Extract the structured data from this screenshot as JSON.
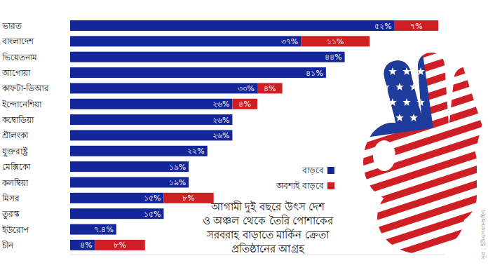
{
  "chart_data": {
    "type": "bar",
    "orientation": "horizontal",
    "stacked": true,
    "data_labels": true,
    "tick_labels": "y",
    "grid": false,
    "legend": "right",
    "title": "আগামী দুই বছরে উৎস দেশ\nও অঞ্চল থেকে তৈরি পোশাকের\nসরবরাহ বাড়াতে মার্কিন ক্রেতা\nপ্রতিষ্ঠানের আগ্রহ",
    "annotations": [
      "সূত্র : ইউএসএফআইএ"
    ],
    "categories": [
      "ভারত",
      "বাংলাদেশ",
      "ভিয়েতনাম",
      "আগোয়া",
      "কাফটা-ডিআর",
      "ইন্দোনেশিয়া",
      "কম্বোডিয়া",
      "শ্রীলংকা",
      "যুক্তরাষ্ট্র",
      "মেক্সিকো",
      "কলম্বিয়া",
      "মিসর",
      "তুরস্ক",
      "ইউরোপ",
      "চীন"
    ],
    "xlim": [
      0,
      60
    ],
    "series": [
      {
        "name": "বাড়বে",
        "color": "#14279a",
        "values": [
          52,
          37,
          44,
          41,
          30,
          26,
          26,
          26,
          22,
          19,
          19,
          15,
          15,
          7.4,
          4
        ],
        "value_labels": [
          "৫২%",
          "৩৭%",
          "৪৪%",
          "৪১%",
          "৩০%",
          "২৬%",
          "২৬%",
          "২৬%",
          "২২%",
          "১৯%",
          "১৯%",
          "১৫%",
          "১৫%",
          "৭.৪%",
          "৪%"
        ]
      },
      {
        "name": "অবশ্যই বাড়বে",
        "color": "#d01f24",
        "values": [
          7,
          11,
          null,
          null,
          4,
          4,
          null,
          null,
          null,
          null,
          null,
          8,
          null,
          null,
          8
        ],
        "value_labels": [
          "৭%",
          "১১%",
          null,
          null,
          "৪%",
          "৪%",
          null,
          null,
          null,
          null,
          null,
          "৮%",
          null,
          null,
          "৮%"
        ]
      }
    ]
  }
}
